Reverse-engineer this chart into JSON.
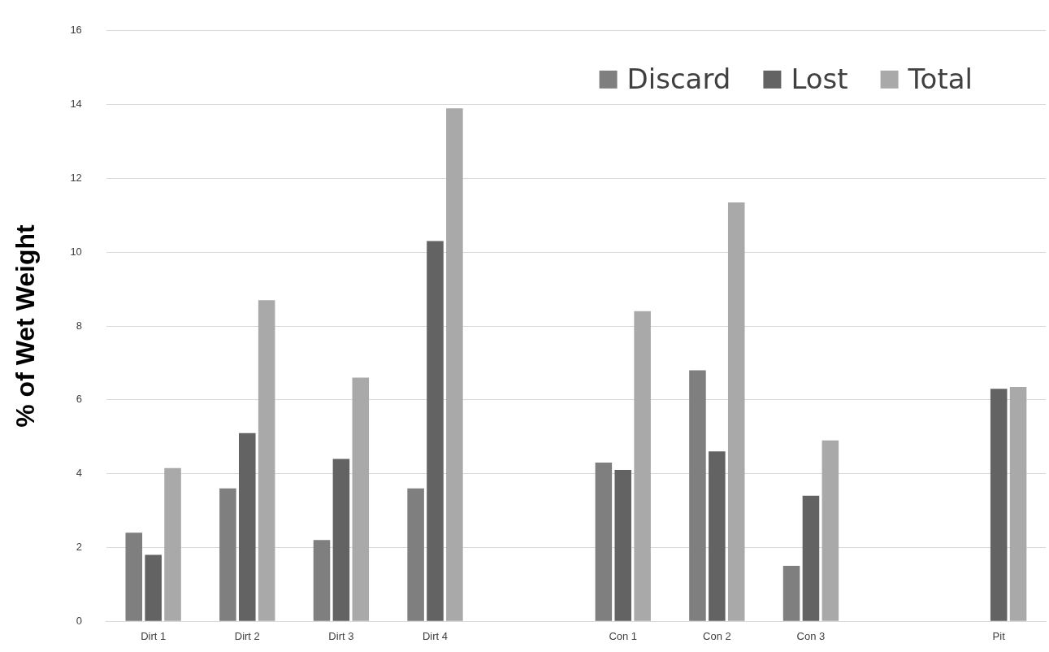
{
  "chart_data": {
    "type": "bar",
    "ylabel": "% of Wet Weight",
    "categories": [
      "Dirt 1",
      "Dirt 2",
      "Dirt 3",
      "Dirt 4",
      null,
      "Con 1",
      "Con 2",
      "Con 3",
      null,
      "Pit"
    ],
    "series": [
      {
        "name": "Discard",
        "color": "#7f7f7f",
        "values": [
          2.4,
          3.6,
          2.2,
          3.6,
          null,
          4.3,
          6.8,
          1.5,
          null,
          0
        ]
      },
      {
        "name": "Lost",
        "color": "#636363",
        "values": [
          1.8,
          5.1,
          4.4,
          10.3,
          null,
          4.1,
          4.6,
          3.4,
          null,
          6.3
        ]
      },
      {
        "name": "Total",
        "color": "#a9a9a9",
        "values": [
          4.15,
          8.7,
          6.6,
          13.9,
          null,
          8.4,
          11.35,
          4.9,
          null,
          6.35
        ]
      }
    ],
    "ylim": [
      0,
      16
    ],
    "yticks": [
      0,
      2,
      4,
      6,
      8,
      10,
      12,
      14,
      16
    ],
    "grid": "y",
    "legend": "top right"
  }
}
